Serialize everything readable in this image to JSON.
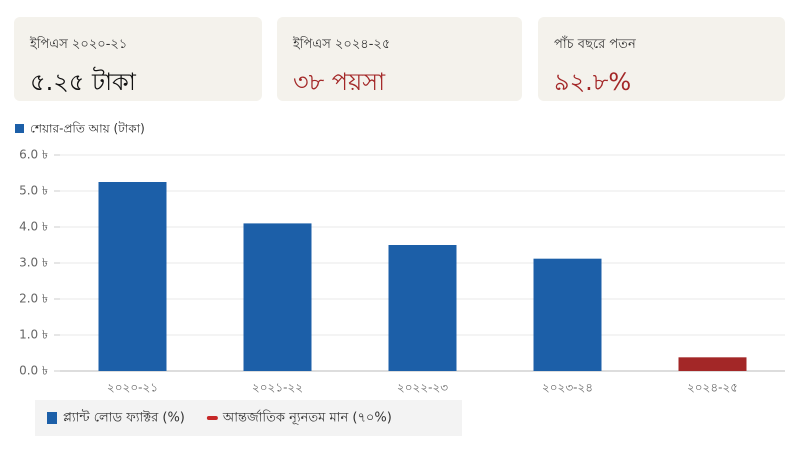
{
  "cards": [
    {
      "label": "ইপিএস ২০২০-২১",
      "value": "৫.২৫ টাকা"
    },
    {
      "label": "ইপিএস ২০২৪-২৫",
      "value": "৩৮ পয়সা"
    },
    {
      "label": "পাঁচ বছরে পতন",
      "value": "৯২.৮%"
    }
  ],
  "chart_data": {
    "type": "bar",
    "series": [
      {
        "name": "শেয়ার-প্রতি আয় (টাকা)",
        "color": "#1c5fa8",
        "colors": [
          "#1c5fa8",
          "#1c5fa8",
          "#1c5fa8",
          "#1c5fa8",
          "#a32727"
        ],
        "values": [
          5.25,
          4.1,
          3.5,
          3.12,
          0.38
        ]
      }
    ],
    "categories": [
      "২০২০-২১",
      "২০২১-২২",
      "২০২২-২৩",
      "২০২৩-২৪",
      "২০২৪-২৫"
    ],
    "ylim": [
      0,
      6
    ],
    "yticks": [
      {
        "value": 0,
        "label": "0.0 ৳"
      },
      {
        "value": 1,
        "label": "1.0 ৳"
      },
      {
        "value": 2,
        "label": "2.0 ৳"
      },
      {
        "value": 3,
        "label": "3.0 ৳"
      },
      {
        "value": 4,
        "label": "4.0 ৳"
      },
      {
        "value": 5,
        "label": "5.0 ৳"
      },
      {
        "value": 6,
        "label": "6.0 ৳"
      }
    ],
    "grid": true,
    "legend": "top-left"
  },
  "bottom_legend": [
    {
      "name": "প্ল্যান্ট লোড ফ্যাক্টর (%)",
      "color": "#1c5fa8",
      "shape": "square"
    },
    {
      "name": "আন্তর্জাতিক ন্যূনতম মান (৭০%)",
      "color": "#c62828",
      "shape": "dash"
    }
  ]
}
